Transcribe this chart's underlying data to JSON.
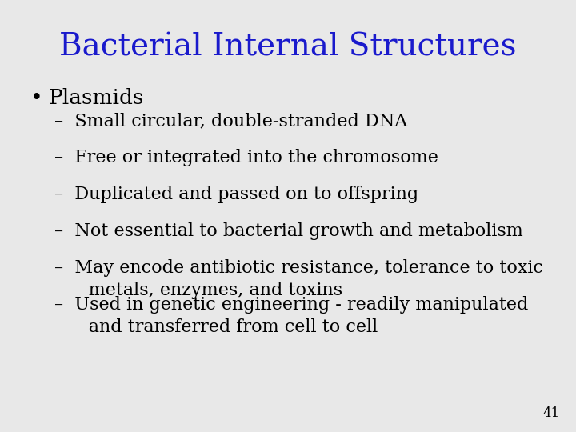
{
  "title": "Bacterial Internal Structures",
  "title_color": "#1a1acc",
  "title_fontsize": 28,
  "title_font": "serif",
  "background_color": "#e8e8e8",
  "bullet_text": "Plasmids",
  "bullet_fontsize": 19,
  "bullet_color": "#000000",
  "bullet_font": "serif",
  "sub_items": [
    "–  Small circular, double-stranded DNA",
    "–  Free or integrated into the chromosome",
    "–  Duplicated and passed on to offspring",
    "–  Not essential to bacterial growth and metabolism",
    "–  May encode antibiotic resistance, tolerance to toxic\n      metals, enzymes, and toxins",
    "–  Used in genetic engineering - readily manipulated\n      and transferred from cell to cell"
  ],
  "sub_fontsize": 16,
  "sub_color": "#000000",
  "sub_font": "serif",
  "page_number": "41",
  "page_number_fontsize": 12,
  "page_number_color": "#000000"
}
